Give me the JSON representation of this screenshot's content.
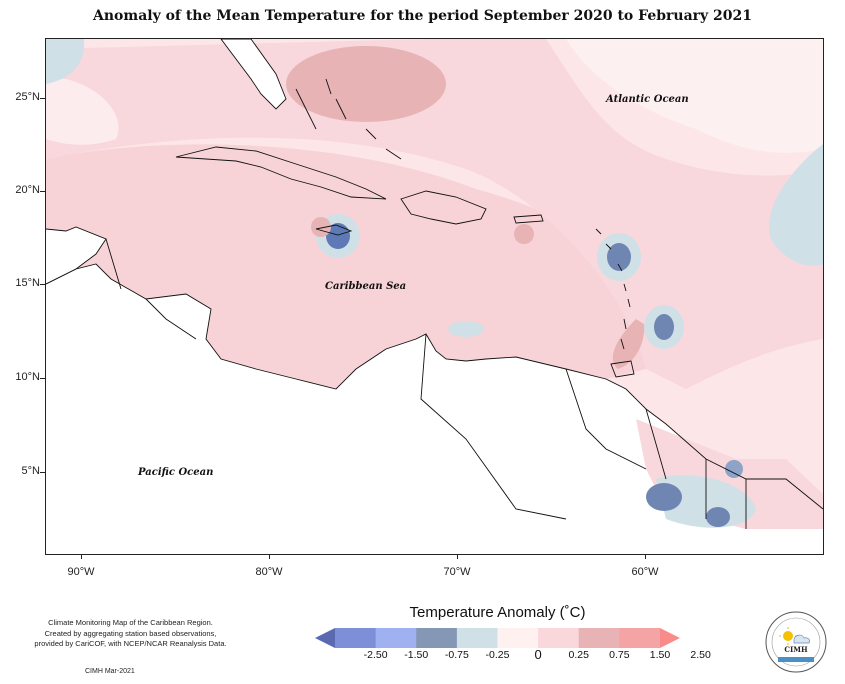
{
  "title": "Anomaly of the Mean Temperature for the period September 2020 to February 2021",
  "map": {
    "lat_labels": [
      "25°N",
      "20°N",
      "15°N",
      "10°N",
      "5°N"
    ],
    "lon_labels": [
      "90°W",
      "80°W",
      "70°W",
      "60°W"
    ],
    "places": {
      "atlantic": "Atlantic Ocean",
      "caribbean": "Caribbean Sea",
      "pacific": "Pacific Ocean"
    }
  },
  "legend": {
    "title": "Temperature Anomaly (˚C)",
    "ticks": [
      "-2.50",
      "-1.50",
      "-0.75",
      "-0.25",
      "0",
      "0.25",
      "0.75",
      "1.50",
      "2.50"
    ],
    "colors": [
      "#5b6ab0",
      "#7d8fd6",
      "#9fb1f0",
      "#8497b5",
      "#cfe1e6",
      "#fff1f0",
      "#f9d7da",
      "#e8b3b5",
      "#f5a4a6",
      "#f98b8b"
    ]
  },
  "credits": {
    "line1": "Climate Monitoring Map of the Caribbean Region.",
    "line2": "Created by aggregating station based observations,",
    "line3": "provided by CariCOF, with NCEP/NCAR Reanalysis Data.",
    "date": "CIMH Mar-2021"
  },
  "logo": {
    "text": "CIMH",
    "icon": "cimh-sun-cloud-logo"
  }
}
